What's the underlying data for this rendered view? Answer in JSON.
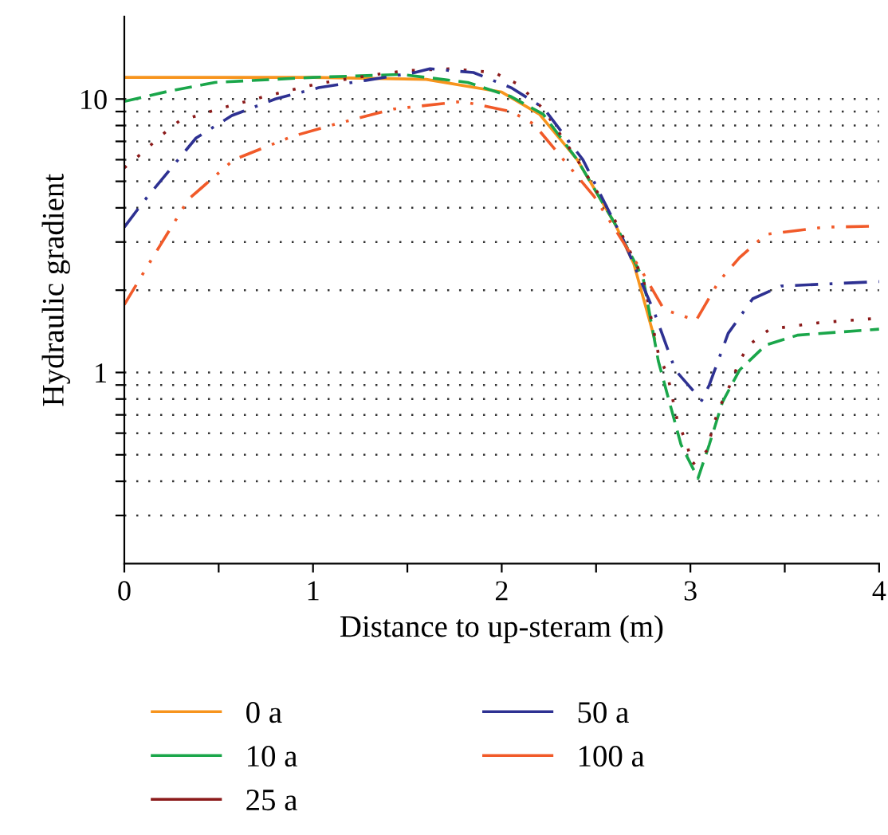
{
  "chart_data": {
    "type": "line",
    "xlabel": "Distance to up-steram (m)",
    "ylabel": "Hydraulic gradient",
    "log": "y",
    "grid": "y",
    "legend": "bottom",
    "marker": "none",
    "xlim": [
      0,
      4
    ],
    "xticks": [
      0,
      {
        "value": 0.5,
        "label": null
      },
      1,
      {
        "value": 1.5,
        "label": null
      },
      2,
      {
        "value": 2.5,
        "label": null
      },
      3,
      {
        "value": 3.5,
        "label": null
      },
      4
    ],
    "ylim": [
      0.2,
      20
    ],
    "yticks": [
      {
        "value": 0.3,
        "label": null
      },
      {
        "value": 0.4,
        "label": null
      },
      {
        "value": 0.5,
        "label": null
      },
      {
        "value": 0.6,
        "label": null
      },
      {
        "value": 0.7,
        "label": null
      },
      {
        "value": 0.8,
        "label": null
      },
      {
        "value": 0.9,
        "label": null
      },
      1,
      {
        "value": 2,
        "label": null
      },
      {
        "value": 3,
        "label": null
      },
      {
        "value": 4,
        "label": null
      },
      {
        "value": 5,
        "label": null
      },
      {
        "value": 6,
        "label": null
      },
      {
        "value": 7,
        "label": null
      },
      {
        "value": 8,
        "label": null
      },
      {
        "value": 9,
        "label": null
      },
      10
    ],
    "series": [
      {
        "name": "0 a",
        "color": "#f7941d",
        "line_style": "solid",
        "x": [
          0,
          1.0,
          1.6,
          2.0,
          2.2,
          2.4,
          2.6,
          2.7,
          2.81
        ],
        "values": [
          12.0,
          12.0,
          11.8,
          10.6,
          8.8,
          6.0,
          3.5,
          2.5,
          1.33
        ]
      },
      {
        "name": "10 a",
        "color": "#1aa64a",
        "line_style": "dashed",
        "x": [
          0,
          0.24,
          0.48,
          1.0,
          1.47,
          1.82,
          2.05,
          2.22,
          2.4,
          2.6,
          2.75,
          2.83,
          2.95,
          3.04,
          3.1,
          3.17,
          3.26,
          3.4,
          3.57,
          4
        ],
        "values": [
          9.8,
          10.7,
          11.5,
          12.0,
          12.3,
          11.5,
          10.2,
          8.8,
          6.0,
          3.5,
          2.2,
          1.1,
          0.545,
          0.41,
          0.545,
          0.78,
          1.02,
          1.26,
          1.37,
          1.44
        ]
      },
      {
        "name": "25 a",
        "color": "#8b1a1a",
        "line_style": "dotted",
        "x": [
          0,
          0.1,
          0.19,
          0.29,
          0.5,
          0.74,
          1.03,
          1.37,
          1.5,
          1.73,
          1.96,
          2.09,
          2.22,
          2.4,
          2.6,
          2.75,
          2.83,
          2.88,
          2.93,
          2.98,
          3.01,
          3.09,
          3.12,
          3.16,
          3.21,
          3.26,
          3.31,
          3.42,
          3.68,
          4
        ],
        "values": [
          5.6,
          6.4,
          7.3,
          8.3,
          9.2,
          10.2,
          11.4,
          12.4,
          12.7,
          12.9,
          12.5,
          11.3,
          9.2,
          6.0,
          3.6,
          2.2,
          1.17,
          0.97,
          0.67,
          0.55,
          0.46,
          0.52,
          0.64,
          0.76,
          0.9,
          1.1,
          1.26,
          1.44,
          1.52,
          1.58
        ]
      },
      {
        "name": "50 a",
        "color": "#2e3192",
        "line_style": "dashdot",
        "x": [
          0,
          0.1,
          0.38,
          0.57,
          0.8,
          1.03,
          1.28,
          1.54,
          1.62,
          1.85,
          2.05,
          2.22,
          2.43,
          2.64,
          2.81,
          2.92,
          3.06,
          3.1,
          3.2,
          3.33,
          3.48,
          4
        ],
        "values": [
          3.4,
          4.2,
          7.2,
          8.7,
          10.0,
          11.0,
          11.7,
          12.5,
          12.9,
          12.5,
          11.0,
          9.3,
          6.0,
          3.1,
          1.65,
          1.02,
          0.79,
          0.9,
          1.39,
          1.86,
          2.07,
          2.15
        ]
      },
      {
        "name": "100 a",
        "color": "#f15a29",
        "line_style": "dashdotdot",
        "x": [
          0,
          0.16,
          0.34,
          0.58,
          0.89,
          1.12,
          1.43,
          1.79,
          2.05,
          2.17,
          2.49,
          2.75,
          2.86,
          3.03,
          3.15,
          3.26,
          3.4,
          3.71,
          4
        ],
        "values": [
          1.77,
          2.7,
          4.3,
          6.0,
          7.3,
          8.1,
          9.2,
          9.8,
          9.0,
          8.1,
          4.4,
          2.3,
          1.7,
          1.55,
          2.15,
          2.63,
          3.2,
          3.4,
          3.43
        ]
      }
    ]
  }
}
